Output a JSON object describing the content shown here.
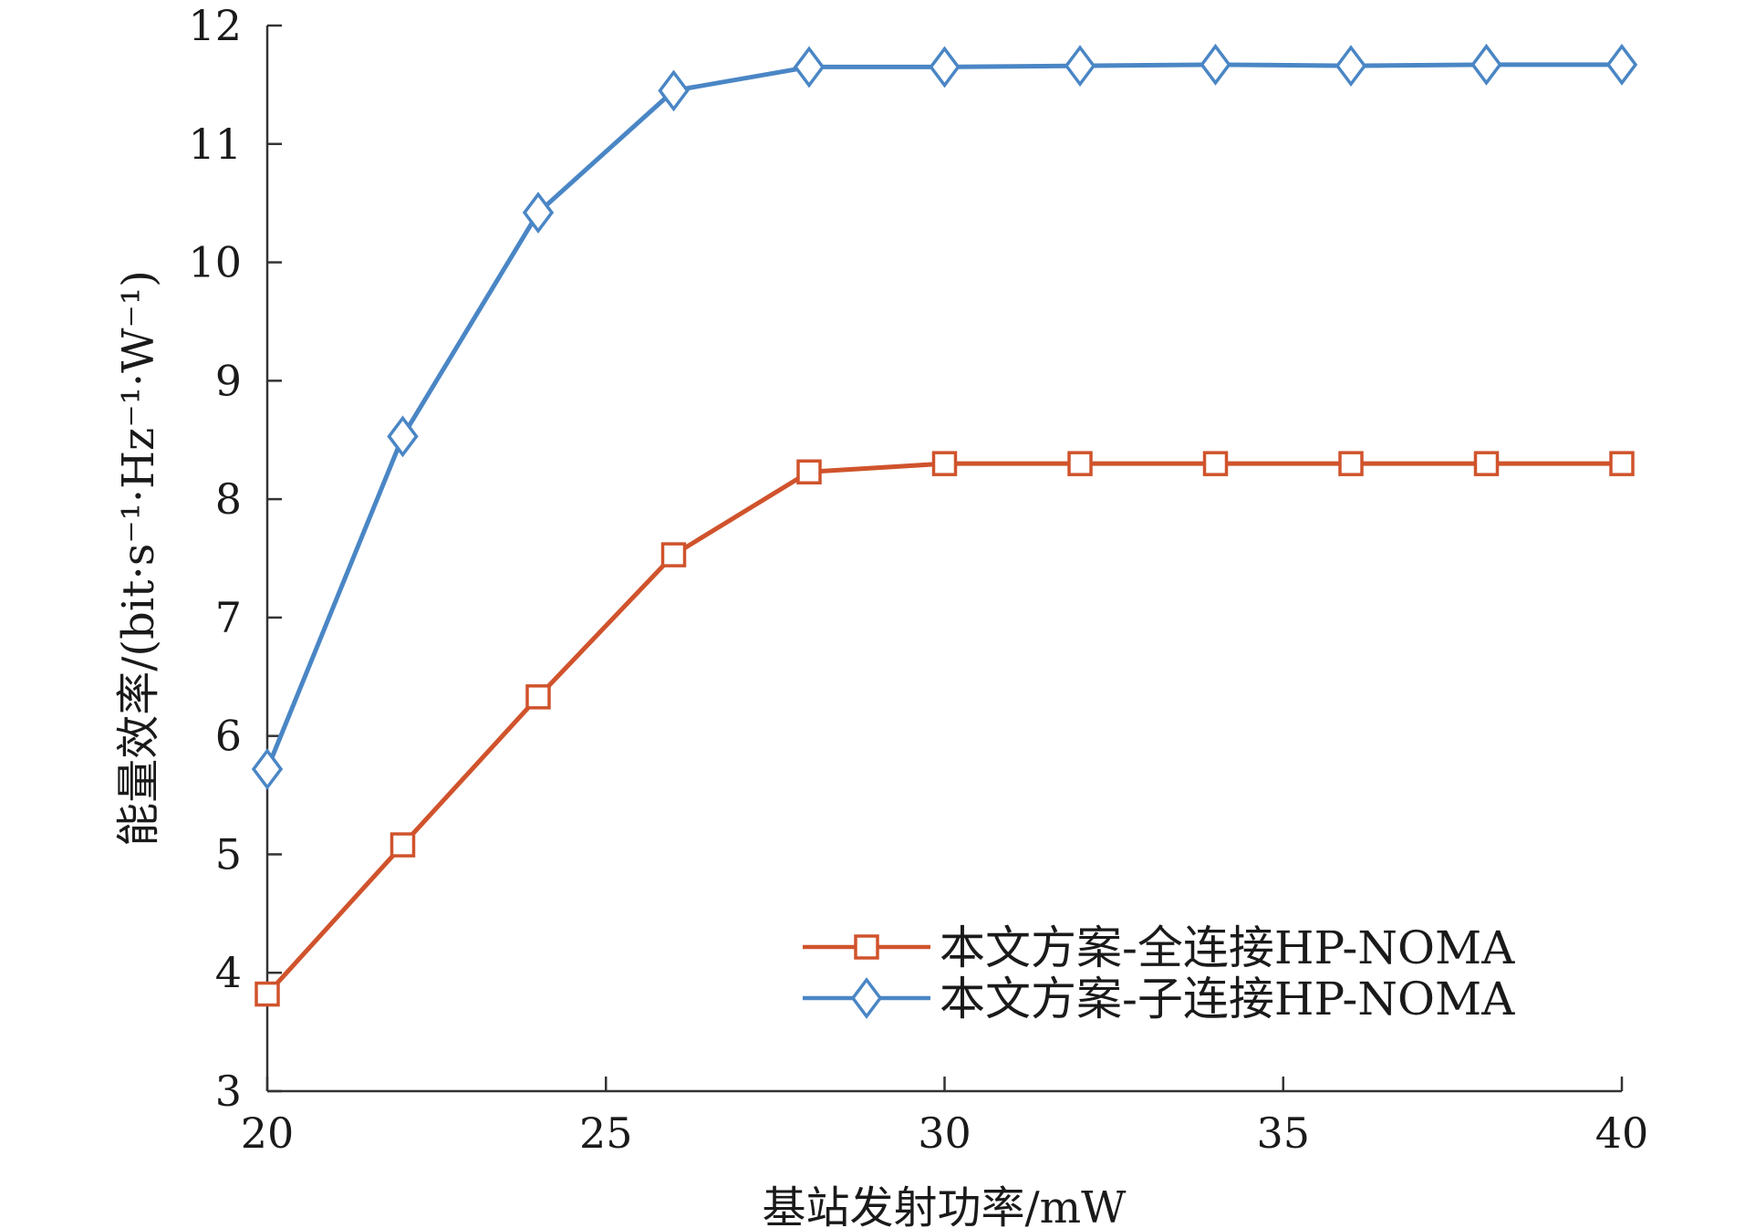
{
  "chart_data": {
    "type": "line",
    "xlabel": "基站发射功率/mW",
    "ylabel": "能量效率/(bit·s⁻¹·Hz⁻¹·W⁻¹)",
    "xlim": [
      20,
      40
    ],
    "ylim": [
      3,
      12
    ],
    "xticks": [
      20,
      25,
      30,
      35,
      40
    ],
    "yticks": [
      3,
      4,
      5,
      6,
      7,
      8,
      9,
      10,
      11,
      12
    ],
    "x": [
      20,
      22,
      24,
      26,
      28,
      30,
      32,
      34,
      36,
      38,
      40
    ],
    "series": [
      {
        "name": "本文方案-全连接HP-NOMA",
        "marker": "square",
        "color": "#d0532c",
        "values": [
          3.82,
          5.08,
          6.33,
          7.53,
          8.23,
          8.3,
          8.3,
          8.3,
          8.3,
          8.3,
          8.3
        ]
      },
      {
        "name": "本文方案-子连接HP-NOMA",
        "marker": "diamond",
        "color": "#4a86c5",
        "values": [
          5.72,
          8.53,
          10.42,
          11.45,
          11.65,
          11.65,
          11.66,
          11.67,
          11.66,
          11.67,
          11.67
        ]
      }
    ],
    "grid": false,
    "legend": "bottom-right"
  }
}
